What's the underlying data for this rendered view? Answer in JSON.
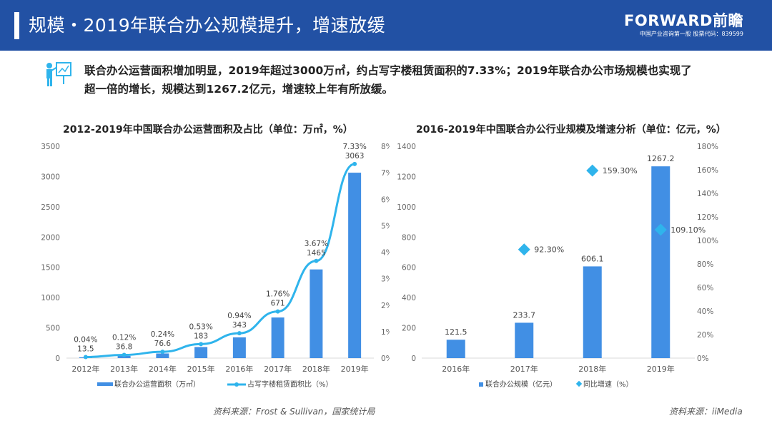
{
  "header": {
    "title": "规模・2019年联合办公规模提升，增速放缓",
    "logo_brand": "FORWARD前瞻",
    "logo_sub": "中国产业咨询第一股  股票代码：839599"
  },
  "intro": "联合办公运营面积增加明显，2019年超过3000万㎡，约占写字楼租赁面积的7.33%；2019年联合办公市场规模也实现了超一倍的增长，规模达到1267.2亿元，增速较上年有所放缓。",
  "colors": {
    "header": "#2251a4",
    "bar": "#418fe4",
    "line": "#2fb4ec"
  },
  "chart_data": [
    {
      "type": "bar",
      "title": "2012-2019年中国联合办公运营面积及占比（单位：万㎡，%）",
      "categories": [
        "2012年",
        "2013年",
        "2014年",
        "2015年",
        "2016年",
        "2017年",
        "2018年",
        "2019年"
      ],
      "series": [
        {
          "name": "联合办公运营面积（万㎡）",
          "type": "bar",
          "values": [
            13.5,
            36.8,
            76.6,
            183,
            343,
            671,
            1465,
            3063
          ],
          "labels": [
            "13.5",
            "36.8",
            "76.6",
            "183",
            "343",
            "671",
            "1465",
            "3063"
          ]
        },
        {
          "name": "占写字楼租赁面积比（%）",
          "type": "line",
          "values": [
            0.04,
            0.12,
            0.24,
            0.53,
            0.94,
            1.76,
            3.67,
            7.33
          ],
          "labels": [
            "0.04%",
            "0.12%",
            "0.24%",
            "0.53%",
            "0.94%",
            "1.76%",
            "3.67%",
            "7.33%"
          ]
        }
      ],
      "ylim": [
        0,
        3500
      ],
      "yticks": [
        "0",
        "500",
        "1000",
        "1500",
        "2000",
        "2500",
        "3000",
        "3500"
      ],
      "y2lim": [
        0,
        8
      ],
      "y2ticks": [
        "0%",
        "1%",
        "2%",
        "3%",
        "4%",
        "5%",
        "6%",
        "7%",
        "8%"
      ],
      "legend": "bottom"
    },
    {
      "type": "bar",
      "title": "2016-2019年中国联合办公行业规模及增速分析（单位：亿元，%）",
      "categories": [
        "2016年",
        "2017年",
        "2018年",
        "2019年"
      ],
      "series": [
        {
          "name": "联合办公规模（亿元）",
          "type": "bar",
          "values": [
            121.5,
            233.7,
            606.1,
            1267.2
          ],
          "labels": [
            "121.5",
            "233.7",
            "606.1",
            "1267.2"
          ]
        },
        {
          "name": "同比增速（%）",
          "type": "scatter",
          "values": [
            null,
            92.3,
            159.3,
            109.1
          ],
          "labels": [
            "",
            "92.30%",
            "159.30%",
            "109.10%"
          ]
        }
      ],
      "ylim": [
        0,
        1400
      ],
      "yticks": [
        "0",
        "200",
        "400",
        "600",
        "800",
        "1000",
        "1200",
        "1400"
      ],
      "y2lim": [
        0,
        180
      ],
      "y2ticks": [
        "0%",
        "20%",
        "40%",
        "60%",
        "80%",
        "100%",
        "120%",
        "140%",
        "160%",
        "180%"
      ],
      "legend": "bottom"
    }
  ],
  "sources": [
    "资料来源：Frost & Sullivan，国家统计局",
    "资料来源：iiMedia"
  ]
}
